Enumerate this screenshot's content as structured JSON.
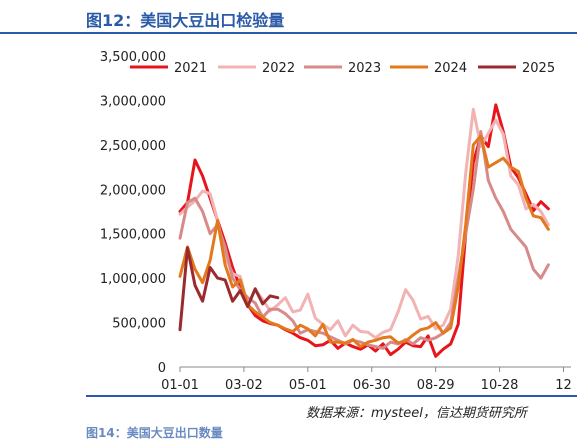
{
  "header": {
    "title": "图12：美国大豆出口检验量"
  },
  "footer": {
    "source": "数据来源：mysteel，信达期货研究所",
    "next_caption": "图14：美国大豆出口数量"
  },
  "chart_data": {
    "type": "line",
    "title": "图12：美国大豆出口检验量",
    "xlabel": "",
    "ylabel": "",
    "ylim": [
      0,
      3500000
    ],
    "yticks": [
      0,
      500000,
      1000000,
      1500000,
      2000000,
      2500000,
      3000000,
      3500000
    ],
    "ytick_labels": [
      "0",
      "500,000",
      "1,000,000",
      "1,500,000",
      "2,000,000",
      "2,500,000",
      "3,000,000",
      "3,500,000"
    ],
    "xlim": [
      1,
      53
    ],
    "xticks": [
      1,
      9.5,
      18,
      26.5,
      35,
      43.5,
      52
    ],
    "xtick_labels": [
      "01-01",
      "03-02",
      "05-01",
      "06-30",
      "08-29",
      "10-28",
      "12"
    ],
    "grid": false,
    "legend_position": "top",
    "series": [
      {
        "name": "2021",
        "color": "#e8141c",
        "width": 3,
        "points": [
          [
            1,
            1750000
          ],
          [
            2,
            1850000
          ],
          [
            3,
            2330000
          ],
          [
            4,
            2150000
          ],
          [
            5,
            1900000
          ],
          [
            6,
            1650000
          ],
          [
            7,
            1400000
          ],
          [
            8,
            1120000
          ],
          [
            9,
            900000
          ],
          [
            10,
            700000
          ],
          [
            11,
            580000
          ],
          [
            12,
            520000
          ],
          [
            13,
            490000
          ],
          [
            14,
            470000
          ],
          [
            15,
            420000
          ],
          [
            16,
            380000
          ],
          [
            17,
            330000
          ],
          [
            18,
            300000
          ],
          [
            19,
            240000
          ],
          [
            20,
            250000
          ],
          [
            21,
            300000
          ],
          [
            22,
            210000
          ],
          [
            23,
            270000
          ],
          [
            24,
            230000
          ],
          [
            25,
            200000
          ],
          [
            26,
            250000
          ],
          [
            27,
            180000
          ],
          [
            28,
            260000
          ],
          [
            29,
            140000
          ],
          [
            30,
            200000
          ],
          [
            31,
            280000
          ],
          [
            32,
            240000
          ],
          [
            33,
            230000
          ],
          [
            34,
            350000
          ],
          [
            35,
            120000
          ],
          [
            36,
            200000
          ],
          [
            37,
            260000
          ],
          [
            38,
            480000
          ],
          [
            39,
            1500000
          ],
          [
            40,
            2300000
          ],
          [
            41,
            2600000
          ],
          [
            42,
            2480000
          ],
          [
            43,
            2950000
          ],
          [
            44,
            2650000
          ],
          [
            45,
            2250000
          ],
          [
            46,
            2130000
          ],
          [
            47,
            1950000
          ],
          [
            48,
            1760000
          ],
          [
            49,
            1860000
          ],
          [
            50,
            1780000
          ]
        ]
      },
      {
        "name": "2022",
        "color": "#f1b3b3",
        "width": 3,
        "points": [
          [
            1,
            1720000
          ],
          [
            2,
            1800000
          ],
          [
            3,
            1870000
          ],
          [
            4,
            1980000
          ],
          [
            5,
            1950000
          ],
          [
            6,
            1650000
          ],
          [
            7,
            1250000
          ],
          [
            8,
            1050000
          ],
          [
            9,
            1020000
          ],
          [
            10,
            700000
          ],
          [
            11,
            870000
          ],
          [
            12,
            760000
          ],
          [
            13,
            630000
          ],
          [
            14,
            700000
          ],
          [
            15,
            780000
          ],
          [
            16,
            620000
          ],
          [
            17,
            640000
          ],
          [
            18,
            820000
          ],
          [
            19,
            550000
          ],
          [
            20,
            480000
          ],
          [
            21,
            420000
          ],
          [
            22,
            520000
          ],
          [
            23,
            350000
          ],
          [
            24,
            470000
          ],
          [
            25,
            400000
          ],
          [
            26,
            390000
          ],
          [
            27,
            330000
          ],
          [
            28,
            390000
          ],
          [
            29,
            420000
          ],
          [
            30,
            620000
          ],
          [
            31,
            870000
          ],
          [
            32,
            750000
          ],
          [
            33,
            540000
          ],
          [
            34,
            570000
          ],
          [
            35,
            430000
          ],
          [
            36,
            470000
          ],
          [
            37,
            650000
          ],
          [
            38,
            1250000
          ],
          [
            39,
            2180000
          ],
          [
            40,
            2900000
          ],
          [
            41,
            2480000
          ],
          [
            42,
            2630000
          ],
          [
            43,
            2780000
          ],
          [
            44,
            2620000
          ],
          [
            45,
            2150000
          ],
          [
            46,
            2050000
          ],
          [
            47,
            1780000
          ],
          [
            48,
            1830000
          ],
          [
            49,
            1750000
          ],
          [
            50,
            1600000
          ]
        ]
      },
      {
        "name": "2023",
        "color": "#d88a8a",
        "width": 3,
        "points": [
          [
            1,
            1450000
          ],
          [
            2,
            1850000
          ],
          [
            3,
            1900000
          ],
          [
            4,
            1750000
          ],
          [
            5,
            1500000
          ],
          [
            6,
            1600000
          ],
          [
            7,
            1350000
          ],
          [
            8,
            1000000
          ],
          [
            9,
            870000
          ],
          [
            10,
            780000
          ],
          [
            11,
            720000
          ],
          [
            12,
            560000
          ],
          [
            13,
            650000
          ],
          [
            14,
            650000
          ],
          [
            15,
            600000
          ],
          [
            16,
            520000
          ],
          [
            17,
            380000
          ],
          [
            18,
            420000
          ],
          [
            19,
            400000
          ],
          [
            20,
            380000
          ],
          [
            21,
            340000
          ],
          [
            22,
            300000
          ],
          [
            23,
            260000
          ],
          [
            24,
            300000
          ],
          [
            25,
            280000
          ],
          [
            26,
            250000
          ],
          [
            27,
            230000
          ],
          [
            28,
            210000
          ],
          [
            29,
            280000
          ],
          [
            30,
            260000
          ],
          [
            31,
            310000
          ],
          [
            32,
            260000
          ],
          [
            33,
            330000
          ],
          [
            34,
            300000
          ],
          [
            35,
            330000
          ],
          [
            36,
            380000
          ],
          [
            37,
            500000
          ],
          [
            38,
            1000000
          ],
          [
            39,
            1500000
          ],
          [
            40,
            2000000
          ],
          [
            41,
            2650000
          ],
          [
            42,
            2100000
          ],
          [
            43,
            1900000
          ],
          [
            44,
            1750000
          ],
          [
            45,
            1550000
          ],
          [
            46,
            1450000
          ],
          [
            47,
            1350000
          ],
          [
            48,
            1100000
          ],
          [
            49,
            1000000
          ],
          [
            50,
            1150000
          ]
        ]
      },
      {
        "name": "2024",
        "color": "#e3781c",
        "width": 3,
        "points": [
          [
            1,
            1020000
          ],
          [
            2,
            1350000
          ],
          [
            3,
            1100000
          ],
          [
            4,
            950000
          ],
          [
            5,
            1200000
          ],
          [
            6,
            1650000
          ],
          [
            7,
            1150000
          ],
          [
            8,
            900000
          ],
          [
            9,
            980000
          ],
          [
            10,
            700000
          ],
          [
            11,
            620000
          ],
          [
            12,
            560000
          ],
          [
            13,
            500000
          ],
          [
            14,
            470000
          ],
          [
            15,
            430000
          ],
          [
            16,
            400000
          ],
          [
            17,
            470000
          ],
          [
            18,
            430000
          ],
          [
            19,
            350000
          ],
          [
            20,
            480000
          ],
          [
            21,
            280000
          ],
          [
            22,
            280000
          ],
          [
            23,
            270000
          ],
          [
            24,
            310000
          ],
          [
            25,
            230000
          ],
          [
            26,
            280000
          ],
          [
            27,
            300000
          ],
          [
            28,
            330000
          ],
          [
            29,
            340000
          ],
          [
            30,
            270000
          ],
          [
            31,
            290000
          ],
          [
            32,
            360000
          ],
          [
            33,
            420000
          ],
          [
            34,
            440000
          ],
          [
            35,
            500000
          ],
          [
            36,
            380000
          ],
          [
            37,
            440000
          ],
          [
            38,
            900000
          ],
          [
            39,
            1600000
          ],
          [
            40,
            2500000
          ],
          [
            41,
            2600000
          ],
          [
            42,
            2250000
          ],
          [
            43,
            2300000
          ],
          [
            44,
            2350000
          ],
          [
            45,
            2250000
          ],
          [
            46,
            2200000
          ],
          [
            47,
            1900000
          ],
          [
            48,
            1700000
          ],
          [
            49,
            1680000
          ],
          [
            50,
            1550000
          ]
        ]
      },
      {
        "name": "2025",
        "color": "#9b2a2f",
        "width": 3,
        "points": [
          [
            1,
            420000
          ],
          [
            2,
            1340000
          ],
          [
            3,
            920000
          ],
          [
            4,
            740000
          ],
          [
            5,
            1120000
          ],
          [
            6,
            1000000
          ],
          [
            7,
            980000
          ],
          [
            8,
            740000
          ],
          [
            9,
            860000
          ],
          [
            10,
            680000
          ],
          [
            11,
            880000
          ],
          [
            12,
            710000
          ],
          [
            13,
            800000
          ],
          [
            14,
            780000
          ]
        ]
      }
    ]
  }
}
